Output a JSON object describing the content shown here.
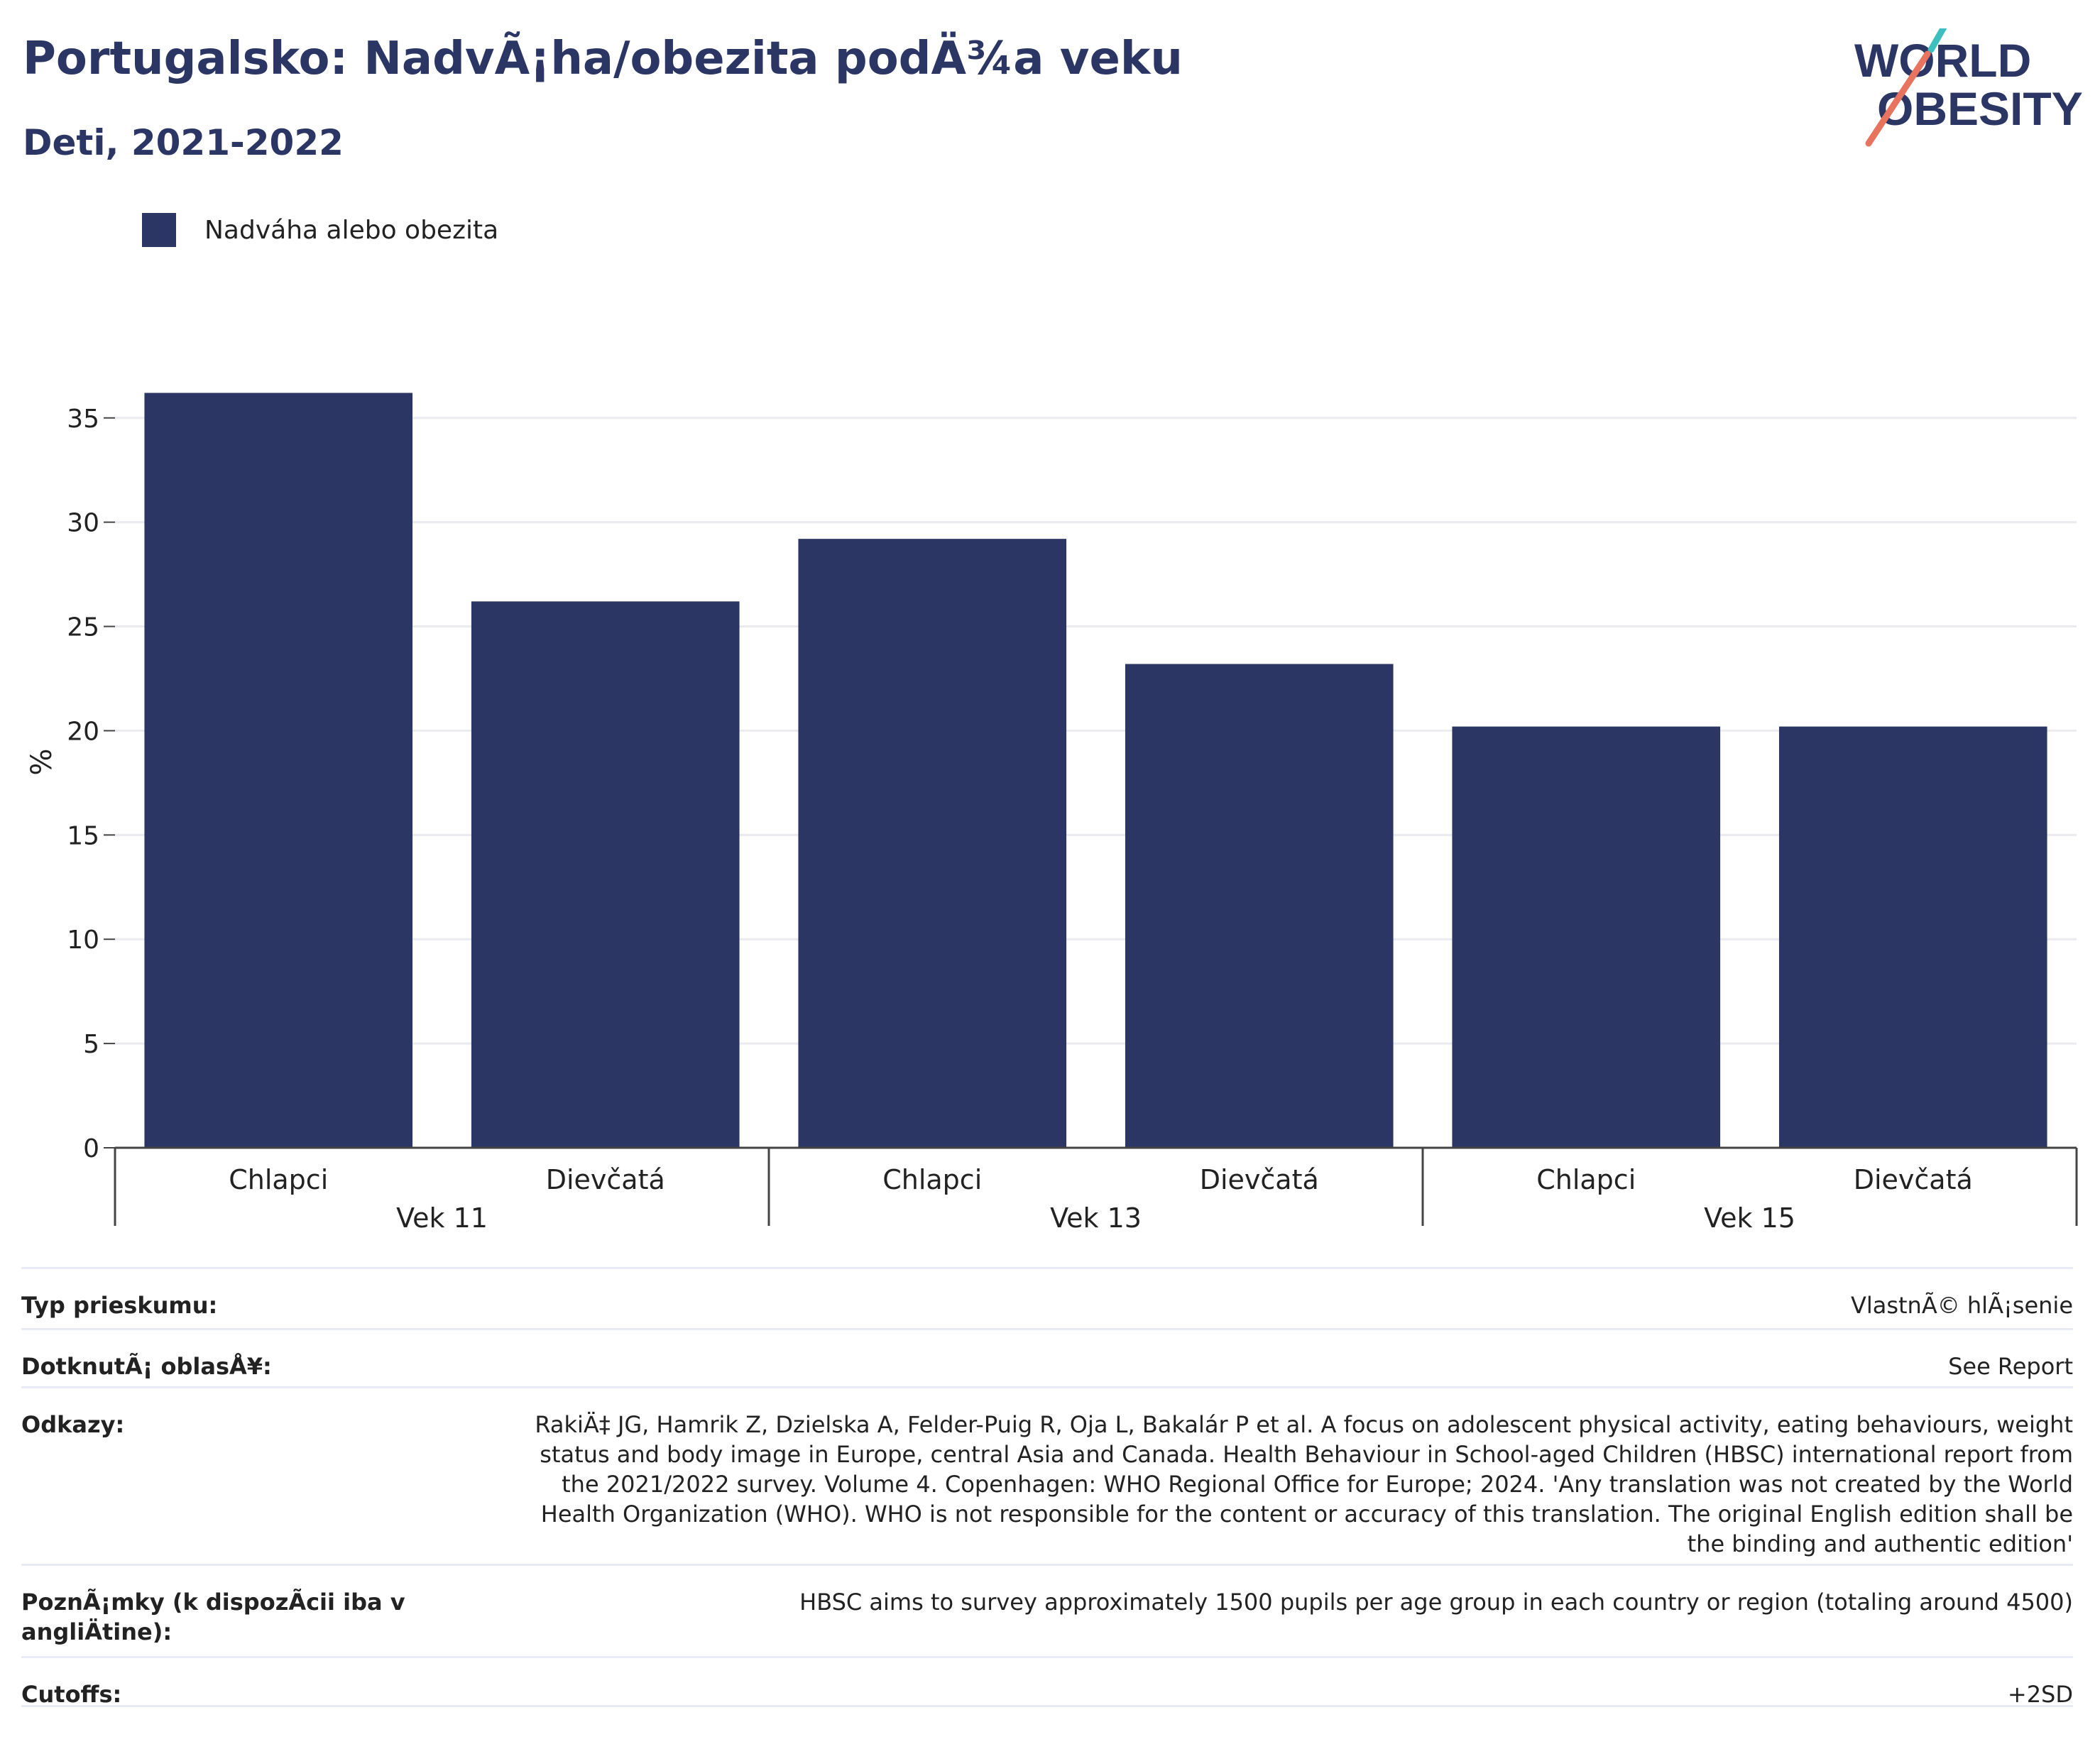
{
  "header": {
    "title": "Portugalsko: NadvÃ¡ha/obezita podÄ¾a veku",
    "subtitle": "Deti, 2021-2022",
    "logo_line1": "WORLD",
    "logo_line2": "OBESITY"
  },
  "legend": {
    "label": "Nadváha alebo obezita",
    "color": "#2b3664"
  },
  "chart_data": {
    "type": "bar",
    "ylabel": "%",
    "ylim": [
      0,
      37
    ],
    "yticks": [
      0,
      5,
      10,
      15,
      20,
      25,
      30,
      35
    ],
    "grid": true,
    "legend_position": "top-left",
    "bar_color": "#2b3664",
    "groups": [
      {
        "label": "Vek 11",
        "categories": [
          "Chlapci",
          "Dievčatá"
        ],
        "values": [
          36.2,
          26.2
        ]
      },
      {
        "label": "Vek 13",
        "categories": [
          "Chlapci",
          "Dievčatá"
        ],
        "values": [
          29.2,
          23.2
        ]
      },
      {
        "label": "Vek 15",
        "categories": [
          "Chlapci",
          "Dievčatá"
        ],
        "values": [
          20.2,
          20.2
        ]
      }
    ]
  },
  "info_table": [
    {
      "label": "Typ prieskumu:",
      "value": "VlastnÃ© hlÃ¡senie"
    },
    {
      "label": "DotknutÃ¡ oblasÅ¥:",
      "value": "See Report"
    },
    {
      "label": "Odkazy:",
      "value": "RakiÄ‡ JG, Hamrik Z, Dzielska A, Felder-Puig R, Oja L, Bakalár P et al. A focus on adolescent physical activity, eating behaviours, weight status and body image in Europe, central Asia and Canada. Health Behaviour in School-aged Children (HBSC) international report from the 2021/2022 survey. Volume 4. Copenhagen: WHO Regional Office for Europe; 2024. 'Any translation was not created by the World Health Organization (WHO). WHO is not responsible for the content or accuracy of this translation. The original English edition shall be the binding and authentic edition'"
    },
    {
      "label": "PoznÃ¡mky (k dispozÃcii iba v angliÄtine):",
      "value": "HBSC aims to survey approximately 1500 pupils per age group in each country or region (totaling around 4500)"
    },
    {
      "label": "Cutoffs:",
      "value": "+2SD"
    }
  ]
}
